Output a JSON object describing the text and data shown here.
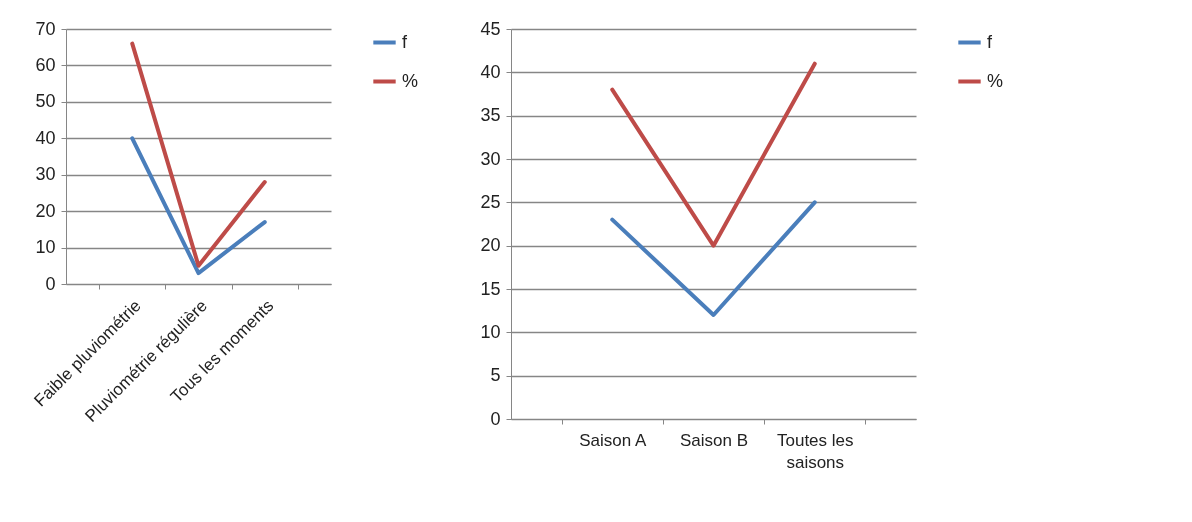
{
  "chart_data": [
    {
      "type": "line",
      "categories": [
        "Faible pluviométrie",
        "Pluviométrie régulière",
        "Tous les moments"
      ],
      "series": [
        {
          "name": "f",
          "color": "#4a7ebb",
          "values": [
            40,
            3,
            17
          ]
        },
        {
          "name": "%",
          "color": "#be4b48",
          "values": [
            66,
            5,
            28
          ]
        }
      ],
      "ylim": [
        0,
        70
      ],
      "yticks": [
        0,
        10,
        20,
        30,
        40,
        50,
        60,
        70
      ],
      "grid": "y",
      "legend": "right",
      "marker": "none",
      "line_style": "solid"
    },
    {
      "type": "line",
      "categories": [
        "Saison A",
        "Saison B",
        "Toutes les saisons"
      ],
      "series": [
        {
          "name": "f",
          "color": "#4a7ebb",
          "values": [
            23,
            12,
            25
          ]
        },
        {
          "name": "%",
          "color": "#be4b48",
          "values": [
            38,
            20,
            41
          ]
        }
      ],
      "ylim": [
        0,
        45
      ],
      "yticks": [
        0,
        5,
        10,
        15,
        20,
        25,
        30,
        35,
        40,
        45
      ],
      "grid": "y",
      "legend": "right",
      "marker": "none",
      "line_style": "solid"
    }
  ]
}
